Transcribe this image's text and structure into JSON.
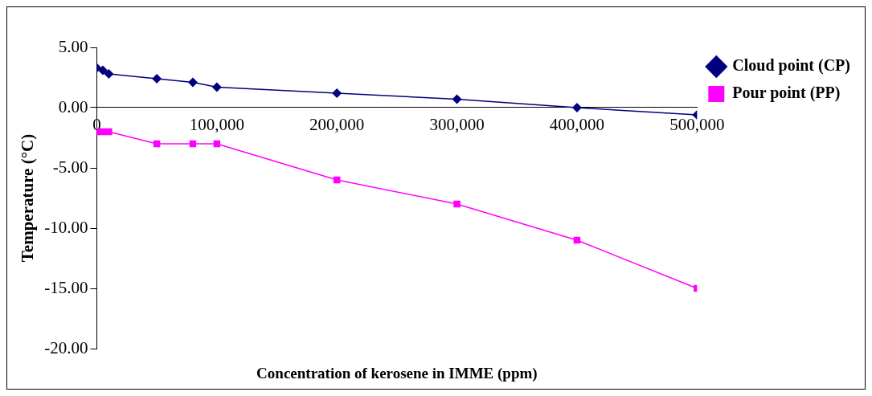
{
  "chart_data": {
    "type": "line",
    "xlabel": "Concentration of kerosene in IMME (ppm)",
    "ylabel": "Temperature (°C)",
    "x": [
      0,
      5000,
      10000,
      50000,
      80000,
      100000,
      200000,
      300000,
      400000,
      500000
    ],
    "series": [
      {
        "name": "Cloud point (CP)",
        "color": "#000080",
        "marker": "diamond",
        "values": [
          3.3,
          3.1,
          2.8,
          2.4,
          2.1,
          1.7,
          1.2,
          0.7,
          0,
          -0.6
        ]
      },
      {
        "name": "Pour point (PP)",
        "color": "#ff00ff",
        "marker": "square",
        "values": [
          -2,
          -2,
          -2,
          -3,
          -3,
          -3,
          -6,
          -8,
          -11,
          -15
        ]
      }
    ],
    "xlim": [
      0,
      500000
    ],
    "xticks": [
      {
        "value": 0,
        "label": "0"
      },
      {
        "value": 100000,
        "label": "100,000"
      },
      {
        "value": 200000,
        "label": "200,000"
      },
      {
        "value": 300000,
        "label": "300,000"
      },
      {
        "value": 400000,
        "label": "400,000"
      },
      {
        "value": 500000,
        "label": "500,000"
      }
    ],
    "ylim": [
      -20,
      5
    ],
    "yticks": [
      {
        "value": -20,
        "label": "-20.00"
      },
      {
        "value": -15,
        "label": "-15.00"
      },
      {
        "value": -10,
        "label": "-10.00"
      },
      {
        "value": -5,
        "label": "-5.00"
      },
      {
        "value": 0,
        "label": "0.00"
      },
      {
        "value": 5,
        "label": "5.00"
      }
    ],
    "grid": false,
    "legend": "right",
    "line_style": "solid"
  }
}
